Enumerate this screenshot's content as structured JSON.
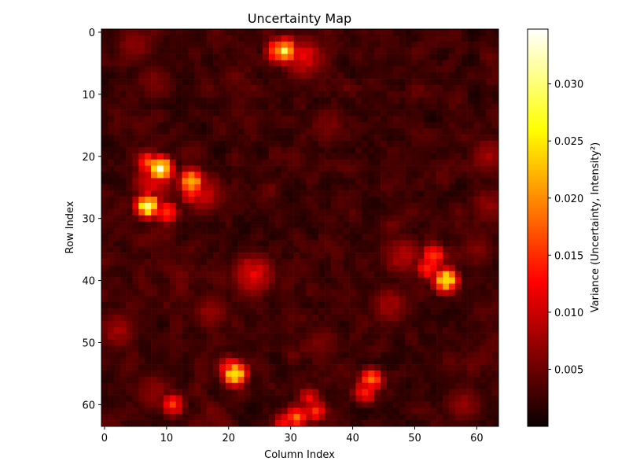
{
  "chart_data": {
    "type": "heatmap",
    "title": "Uncertainty Map",
    "xlabel": "Column Index",
    "ylabel": "Row Index",
    "grid_size": [
      64,
      64
    ],
    "x_range": [
      0,
      63
    ],
    "y_range": [
      0,
      63
    ],
    "x_ticks": [
      0,
      10,
      20,
      30,
      40,
      50,
      60
    ],
    "y_ticks": [
      0,
      10,
      20,
      30,
      40,
      50,
      60
    ],
    "y_axis_inverted": true,
    "colormap": "hot",
    "value_range": [
      0.0,
      0.0348
    ],
    "colorbar": {
      "label": "Variance (Uncertainty, Intensity²)",
      "ticks": [
        0.005,
        0.01,
        0.015,
        0.02,
        0.025,
        0.03
      ],
      "tick_labels": [
        "0.005",
        "0.010",
        "0.015",
        "0.020",
        "0.025",
        "0.030"
      ]
    },
    "background_level": 0.0035,
    "hotspots": [
      {
        "row": 3,
        "col": 29,
        "value": 0.03
      },
      {
        "row": 3,
        "col": 28,
        "value": 0.022
      },
      {
        "row": 22,
        "col": 9,
        "value": 0.0348
      },
      {
        "row": 21,
        "col": 7,
        "value": 0.018
      },
      {
        "row": 24,
        "col": 14,
        "value": 0.026
      },
      {
        "row": 26,
        "col": 14,
        "value": 0.015
      },
      {
        "row": 28,
        "col": 7,
        "value": 0.032
      },
      {
        "row": 29,
        "col": 10,
        "value": 0.017
      },
      {
        "row": 36,
        "col": 53,
        "value": 0.018
      },
      {
        "row": 38,
        "col": 52,
        "value": 0.016
      },
      {
        "row": 40,
        "col": 55,
        "value": 0.03
      },
      {
        "row": 39,
        "col": 24,
        "value": 0.012
      },
      {
        "row": 55,
        "col": 21,
        "value": 0.03
      },
      {
        "row": 54,
        "col": 20,
        "value": 0.015
      },
      {
        "row": 56,
        "col": 43,
        "value": 0.02
      },
      {
        "row": 58,
        "col": 42,
        "value": 0.016
      },
      {
        "row": 60,
        "col": 11,
        "value": 0.016
      },
      {
        "row": 59,
        "col": 33,
        "value": 0.013
      },
      {
        "row": 61,
        "col": 34,
        "value": 0.015
      },
      {
        "row": 62,
        "col": 31,
        "value": 0.019
      },
      {
        "row": 63,
        "col": 29,
        "value": 0.014
      },
      {
        "row": 4,
        "col": 32,
        "value": 0.012
      }
    ],
    "warm_regions": [
      {
        "row": 24,
        "col": 8,
        "value": 0.012
      },
      {
        "row": 26,
        "col": 16,
        "value": 0.01
      },
      {
        "row": 36,
        "col": 48,
        "value": 0.009
      },
      {
        "row": 44,
        "col": 46,
        "value": 0.008
      },
      {
        "row": 48,
        "col": 2,
        "value": 0.008
      },
      {
        "row": 60,
        "col": 58,
        "value": 0.007
      },
      {
        "row": 2,
        "col": 5,
        "value": 0.007
      },
      {
        "row": 20,
        "col": 62,
        "value": 0.008
      },
      {
        "row": 28,
        "col": 62,
        "value": 0.007
      },
      {
        "row": 45,
        "col": 17,
        "value": 0.007
      },
      {
        "row": 50,
        "col": 35,
        "value": 0.006
      },
      {
        "row": 8,
        "col": 8,
        "value": 0.006
      },
      {
        "row": 15,
        "col": 36,
        "value": 0.006
      },
      {
        "row": 58,
        "col": 8,
        "value": 0.007
      },
      {
        "row": 35,
        "col": 60,
        "value": 0.006
      }
    ]
  }
}
